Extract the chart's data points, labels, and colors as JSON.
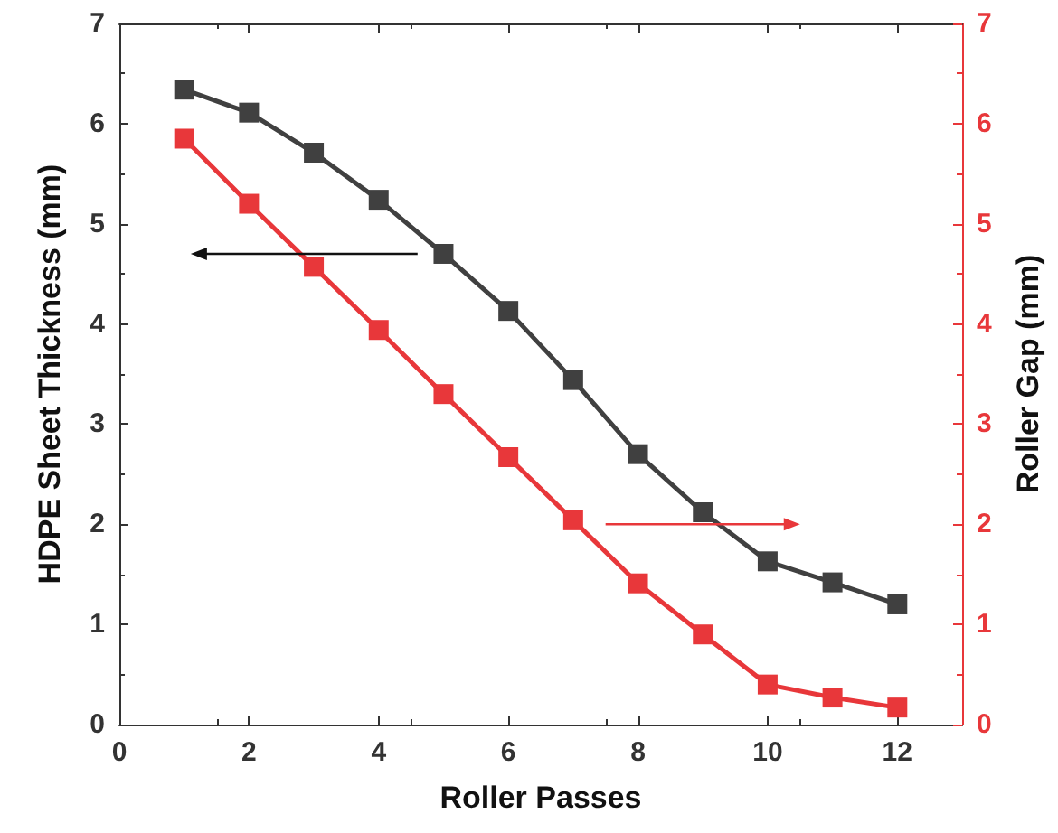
{
  "chart_data": {
    "type": "line",
    "xlabel": "Roller Passes",
    "ylabel": "HDPE Sheet Thickness (mm)",
    "y2label": "Roller Gap (mm)",
    "x": [
      1,
      2,
      3,
      4,
      5,
      6,
      7,
      8,
      9,
      10,
      11,
      12
    ],
    "series": [
      {
        "color": "#404040",
        "values": [
          6.34,
          6.11,
          5.71,
          5.24,
          4.7,
          4.13,
          3.44,
          2.7,
          2.12,
          1.63,
          1.42,
          1.2
        ]
      },
      {
        "color": "#e8373a",
        "axis": "y2",
        "values": [
          5.85,
          5.2,
          4.57,
          3.94,
          3.3,
          2.67,
          2.04,
          1.41,
          0.9,
          0.4,
          0.27,
          0.17
        ]
      }
    ],
    "xlim": [
      0,
      13
    ],
    "xticks": [
      0,
      2,
      4,
      6,
      8,
      10,
      12
    ],
    "ylim": [
      0,
      7
    ],
    "yticks": [
      0,
      1,
      2,
      3,
      4,
      5,
      6,
      7
    ],
    "y2lim": [
      0,
      7
    ],
    "y2ticks": [
      0,
      1,
      2,
      3,
      4,
      5,
      6,
      7
    ],
    "marker": "square",
    "line_style": "solid",
    "grid": false
  }
}
